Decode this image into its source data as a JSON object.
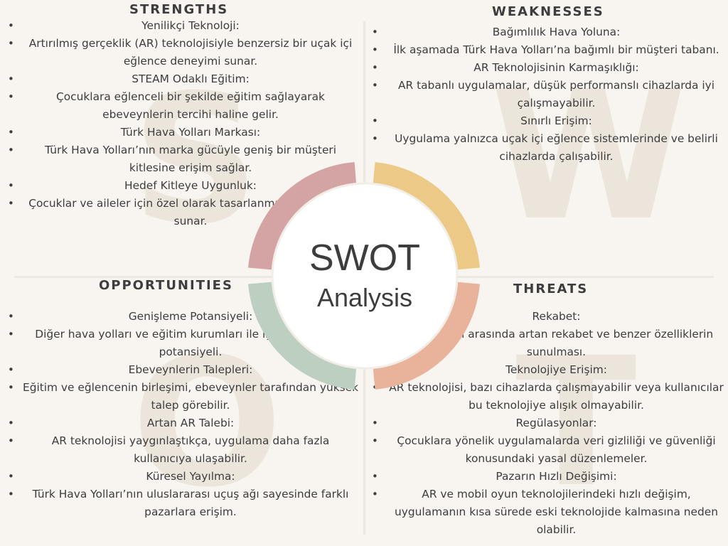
{
  "center": {
    "title": "SWOT",
    "subtitle": "Analysis"
  },
  "colors": {
    "strengths": "#d4a3a3",
    "weaknesses": "#ecc986",
    "opportunities": "#bccfc0",
    "threats": "#e8b29b",
    "background": "#f8f4ef",
    "ghost_letters": "#ece5dc"
  },
  "ghost_letters": {
    "s": "S",
    "w": "W",
    "o": "O",
    "t": "T"
  },
  "strengths": {
    "heading": "STRENGTHS",
    "items": [
      "Yenilikçi Teknoloji:",
      "Artırılmış gerçeklik (AR) teknolojisiyle benzersiz bir uçak içi eğlence deneyimi sunar.",
      "STEAM Odaklı Eğitim:",
      "Çocuklara eğlenceli bir şekilde eğitim sağlayarak ebeveynlerin tercihi haline gelir.",
      "Türk Hava Yolları Markası:",
      "Türk Hava Yolları’nın marka gücüyle geniş bir müşteri kitlesine erişim sağlar.",
      "Hedef Kitleye Uygunluk:",
      "Çocuklar ve aileler için özel olarak tasarlanmış bir deneyim sunar."
    ]
  },
  "weaknesses": {
    "heading": "WEAKNESSES",
    "items": [
      "Bağımlılık Hava Yoluna:",
      "İlk aşamada Türk Hava Yolları’na bağımlı bir müşteri tabanı.",
      "AR Teknolojisinin Karmaşıklığı:",
      "AR tabanlı uygulamalar, düşük performanslı cihazlarda iyi çalışmayabilir.",
      "Sınırlı Erişim:",
      "Uygulama yalnızca uçak içi eğlence sistemlerinde ve belirli cihazlarda çalışabilir."
    ]
  },
  "opportunities": {
    "heading": "OPPORTUNITIES",
    "items": [
      "Genişleme Potansiyeli:",
      "Diğer hava yolları ve eğitim kurumları ile iş birliği yapma potansiyeli.",
      "Ebeveynlerin Talepleri:",
      "Eğitim ve eğlencenin birleşimi, ebeveynler tarafından yüksek talep görebilir.",
      "Artan AR Talebi:",
      "AR teknolojisi yaygınlaştıkça, uygulama daha fazla kullanıcıya ulaşabilir.",
      "Küresel Yayılma:",
      "Türk Hava Yolları’nın uluslararası uçuş ağı sayesinde farklı pazarlara erişim."
    ]
  },
  "threats": {
    "heading": "THREATS",
    "items": [
      "Rekabet:",
      "Hava yolları arasında artan rekabet ve benzer özelliklerin sunulması.",
      "Teknolojiye Erişim:",
      "AR teknolojisi, bazı cihazlarda çalışmayabilir veya kullanıcılar bu teknolojiye alışık olmayabilir.",
      "Regülasyonlar:",
      "Çocuklara yönelik uygulamalarda veri gizliliği ve güvenliği konusundaki yasal düzenlemeler.",
      "Pazarın Hızlı Değişimi:",
      "AR ve mobil oyun teknolojilerindeki hızlı değişim, uygulamanın kısa sürede eski teknolojide kalmasına neden olabilir."
    ]
  }
}
